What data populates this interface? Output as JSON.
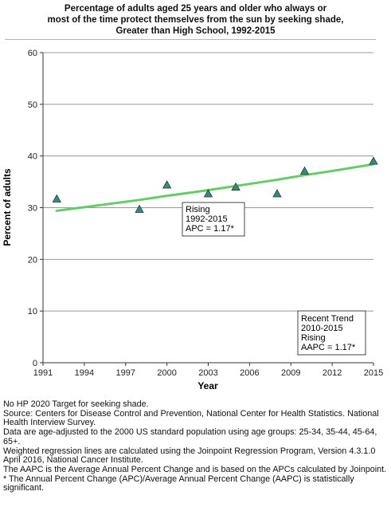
{
  "title_lines": [
    "Percentage of adults aged 25 years and older who always or",
    "most of the time protect themselves from the sun by seeking shade,",
    "Greater than High School,  1992-2015"
  ],
  "chart_data": {
    "type": "scatter",
    "title": "Percentage of adults aged 25 years and older who always or most of the time protect themselves from the sun by seeking shade, Greater than High School,  1992-2015",
    "xlabel": "Year",
    "ylabel": "Percent of adults",
    "xlim": [
      1991,
      2015
    ],
    "ylim": [
      0,
      60
    ],
    "x_ticks": [
      "1991",
      "1994",
      "1997",
      "2000",
      "2003",
      "2006",
      "2009",
      "2012",
      "2015"
    ],
    "y_ticks": [
      "0",
      "10",
      "20",
      "30",
      "40",
      "50",
      "60"
    ],
    "grid": "horizontal",
    "marker": "triangle",
    "marker_color": "#3a8a7c",
    "line_color": "#66cc66",
    "points": [
      {
        "x": 1992,
        "y": 31.7
      },
      {
        "x": 1998,
        "y": 29.7
      },
      {
        "x": 2000,
        "y": 34.4
      },
      {
        "x": 2003,
        "y": 32.7
      },
      {
        "x": 2005,
        "y": 34.0
      },
      {
        "x": 2008,
        "y": 32.7
      },
      {
        "x": 2010,
        "y": 37.1
      },
      {
        "x": 2015,
        "y": 39.0
      }
    ],
    "trend_line": {
      "x": [
        1992,
        1994,
        1996,
        1998,
        2000,
        2002,
        2004,
        2006,
        2008,
        2010,
        2012,
        2015
      ],
      "y": [
        29.4,
        30.1,
        30.8,
        31.5,
        32.3,
        33.0,
        33.8,
        34.6,
        35.4,
        36.3,
        37.1,
        38.4
      ]
    },
    "annotations": [
      {
        "lines": [
          "Rising",
          "1992-2015",
          "APC =  1.17*"
        ]
      },
      {
        "lines": [
          "Recent Trend",
          "2010-2015",
          "Rising",
          "AAPC =  1.17*"
        ]
      }
    ]
  },
  "footnotes": [
    "No HP 2020 Target for seeking shade.",
    "Source: Centers for Disease Control and Prevention, National Center for Health Statistics. National Health Interview Survey.",
    "Data are age-adjusted to the 2000 US standard population using age groups: 25-34, 35-44, 45-64, 65+.",
    "Weighted regression lines are calculated using the Joinpoint Regression Program, Version 4.3.1.0 April 2016, National Cancer Institute.",
    "The AAPC is the Average Annual Percent Change and is based on the APCs calculated by Joinpoint.",
    "* The Annual Percent Change (APC)/Average Annual Percent Change (AAPC) is statistically significant."
  ]
}
